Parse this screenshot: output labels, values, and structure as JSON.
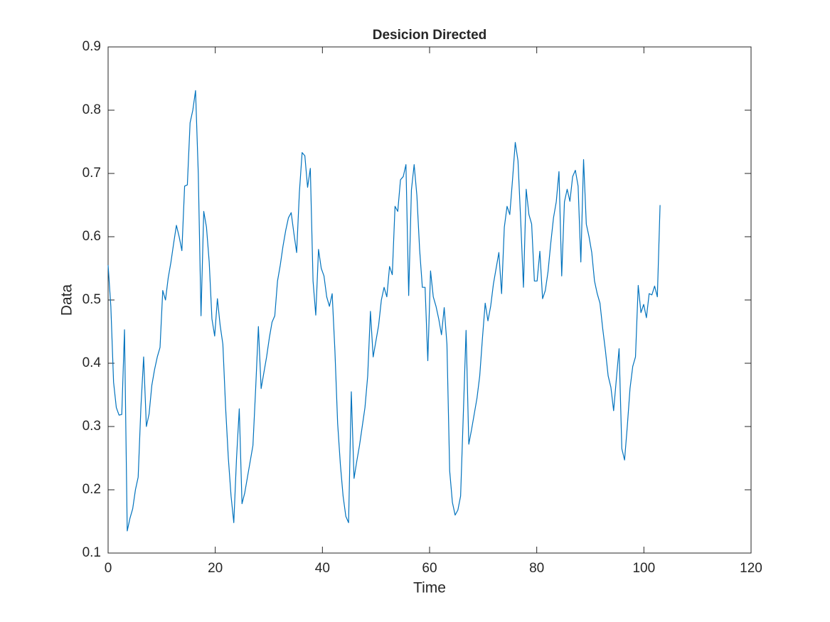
{
  "chart_data": {
    "type": "line",
    "title": "Desicion Directed",
    "x_label": "Time",
    "y_label": "Data",
    "xlim": [
      0,
      120
    ],
    "xticks": [
      0,
      20,
      40,
      60,
      80,
      100,
      120
    ],
    "ylim": [
      0.1,
      0.9
    ],
    "yticks": [
      0.1,
      0.2,
      0.3,
      0.4,
      0.5,
      0.6,
      0.7,
      0.8,
      0.9
    ],
    "color": "#0072bd",
    "x": [
      0,
      0.51,
      1.02,
      1.53,
      2.04,
      2.55,
      3.06,
      3.57,
      4.08,
      4.59,
      5.1,
      5.61,
      6.12,
      6.63,
      7.14,
      7.65,
      8.16,
      8.67,
      9.18,
      9.69,
      10.2,
      10.71,
      11.22,
      11.73,
      12.24,
      12.75,
      13.26,
      13.77,
      14.28,
      14.79,
      15.3,
      15.81,
      16.32,
      16.83,
      17.34,
      17.85,
      18.36,
      18.87,
      19.38,
      19.89,
      20.4,
      20.91,
      21.42,
      21.93,
      22.44,
      22.95,
      23.46,
      23.97,
      24.48,
      24.99,
      25.5,
      26.01,
      26.52,
      27.03,
      27.54,
      28.05,
      28.56,
      29.07,
      29.58,
      30.09,
      30.6,
      31.11,
      31.62,
      32.13,
      32.64,
      33.15,
      33.66,
      34.17,
      34.68,
      35.19,
      35.7,
      36.21,
      36.72,
      37.23,
      37.74,
      38.25,
      38.76,
      39.27,
      39.78,
      40.29,
      40.8,
      41.31,
      41.82,
      42.33,
      42.84,
      43.35,
      43.86,
      44.37,
      44.88,
      45.39,
      45.9,
      46.41,
      46.92,
      47.43,
      47.94,
      48.45,
      48.96,
      49.47,
      49.98,
      50.49,
      51,
      51.51,
      52.02,
      52.53,
      53.04,
      53.55,
      54.06,
      54.57,
      55.08,
      55.59,
      56.1,
      56.61,
      57.12,
      57.63,
      58.14,
      58.65,
      59.16,
      59.67,
      60.18,
      60.69,
      61.2,
      61.71,
      62.22,
      62.73,
      63.24,
      63.75,
      64.26,
      64.77,
      65.28,
      65.79,
      66.3,
      66.81,
      67.32,
      67.83,
      68.34,
      68.85,
      69.36,
      69.87,
      70.38,
      70.89,
      71.4,
      71.91,
      72.42,
      72.93,
      73.44,
      73.95,
      74.46,
      74.97,
      75.48,
      75.99,
      76.5,
      77.01,
      77.52,
      78.03,
      78.54,
      79.05,
      79.56,
      80.07,
      80.58,
      81.09,
      81.6,
      82.11,
      82.62,
      83.13,
      83.64,
      84.15,
      84.66,
      85.17,
      85.68,
      86.19,
      86.7,
      87.21,
      87.72,
      88.23,
      88.74,
      89.25,
      89.76,
      90.27,
      90.78,
      91.29,
      91.8,
      92.31,
      92.82,
      93.33,
      93.84,
      94.35,
      94.86,
      95.37,
      95.88,
      96.39,
      96.9,
      97.41,
      97.92,
      98.43,
      98.94,
      99.45,
      99.96,
      100.47,
      100.98,
      101.49,
      102,
      102.51,
      103.02
    ],
    "values": [
      0.555,
      0.49,
      0.37,
      0.33,
      0.318,
      0.319,
      0.453,
      0.135,
      0.155,
      0.17,
      0.2,
      0.22,
      0.33,
      0.41,
      0.3,
      0.32,
      0.365,
      0.39,
      0.41,
      0.425,
      0.515,
      0.5,
      0.535,
      0.56,
      0.59,
      0.618,
      0.6,
      0.578,
      0.68,
      0.682,
      0.78,
      0.8,
      0.831,
      0.7,
      0.475,
      0.64,
      0.615,
      0.56,
      0.47,
      0.443,
      0.502,
      0.46,
      0.43,
      0.33,
      0.25,
      0.19,
      0.148,
      0.25,
      0.328,
      0.178,
      0.195,
      0.22,
      0.245,
      0.27,
      0.36,
      0.458,
      0.36,
      0.385,
      0.41,
      0.44,
      0.465,
      0.475,
      0.53,
      0.555,
      0.585,
      0.61,
      0.63,
      0.638,
      0.605,
      0.575,
      0.67,
      0.733,
      0.728,
      0.678,
      0.708,
      0.53,
      0.476,
      0.58,
      0.55,
      0.538,
      0.505,
      0.49,
      0.51,
      0.42,
      0.305,
      0.24,
      0.19,
      0.158,
      0.148,
      0.355,
      0.218,
      0.245,
      0.27,
      0.3,
      0.33,
      0.38,
      0.482,
      0.41,
      0.435,
      0.46,
      0.5,
      0.52,
      0.505,
      0.553,
      0.54,
      0.648,
      0.64,
      0.69,
      0.695,
      0.714,
      0.507,
      0.674,
      0.714,
      0.665,
      0.58,
      0.52,
      0.52,
      0.404,
      0.546,
      0.505,
      0.49,
      0.47,
      0.445,
      0.488,
      0.43,
      0.23,
      0.18,
      0.16,
      0.168,
      0.19,
      0.32,
      0.452,
      0.272,
      0.295,
      0.32,
      0.345,
      0.38,
      0.44,
      0.495,
      0.467,
      0.49,
      0.525,
      0.55,
      0.575,
      0.51,
      0.615,
      0.648,
      0.635,
      0.69,
      0.749,
      0.72,
      0.625,
      0.52,
      0.675,
      0.635,
      0.62,
      0.53,
      0.53,
      0.577,
      0.502,
      0.515,
      0.545,
      0.59,
      0.63,
      0.655,
      0.703,
      0.538,
      0.655,
      0.675,
      0.656,
      0.695,
      0.705,
      0.68,
      0.56,
      0.722,
      0.62,
      0.6,
      0.575,
      0.53,
      0.51,
      0.495,
      0.455,
      0.42,
      0.38,
      0.362,
      0.325,
      0.375,
      0.423,
      0.265,
      0.247,
      0.3,
      0.36,
      0.395,
      0.41,
      0.523,
      0.48,
      0.493,
      0.472,
      0.51,
      0.508,
      0.522,
      0.505,
      0.65
    ]
  }
}
